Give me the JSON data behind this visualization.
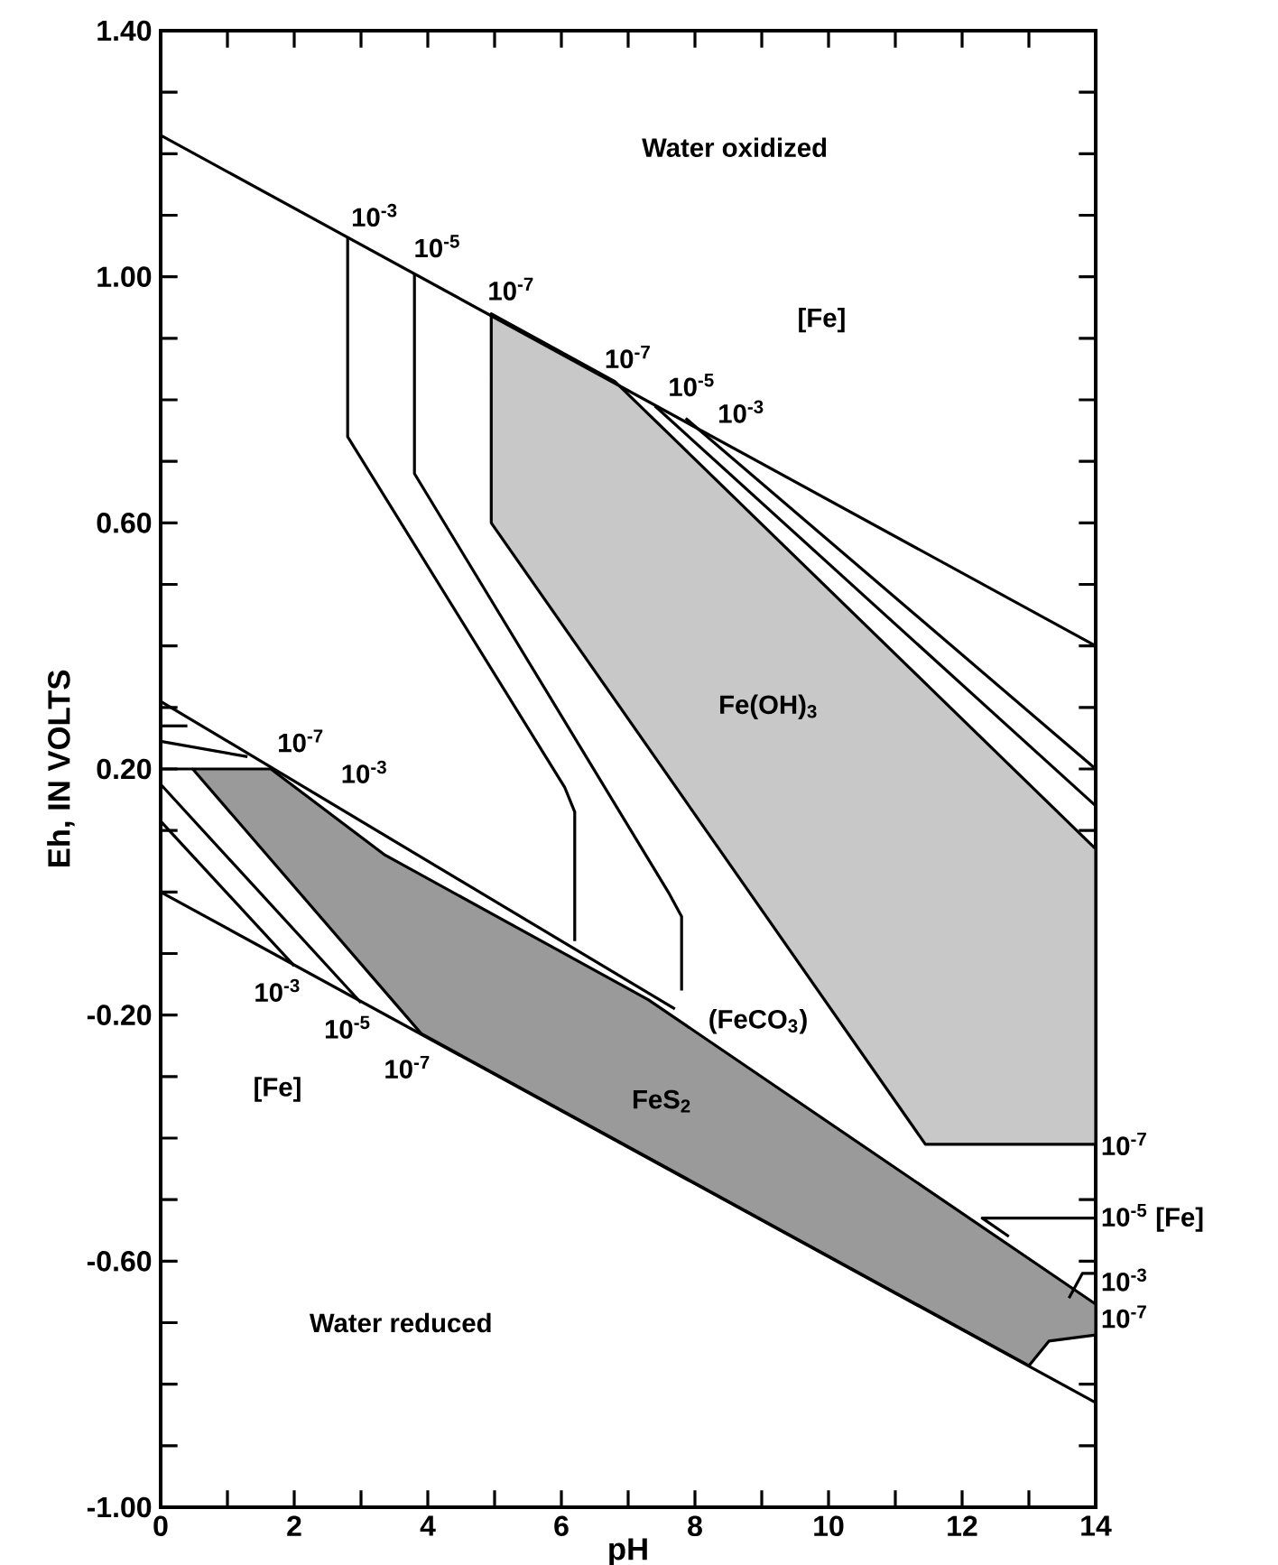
{
  "chart_data": {
    "type": "line",
    "xlabel": "pH",
    "ylabel": "Eh, IN VOLTS",
    "marker": "none",
    "xlim": [
      0,
      14
    ],
    "ylim": [
      -1.0,
      1.4
    ],
    "xticks": [
      0,
      {
        "value": 1,
        "label": null
      },
      2,
      {
        "value": 3,
        "label": null
      },
      4,
      {
        "value": 5,
        "label": null
      },
      6,
      {
        "value": 7,
        "label": null
      },
      8,
      {
        "value": 9,
        "label": null
      },
      10,
      {
        "value": 11,
        "label": null
      },
      12,
      {
        "value": 13,
        "label": null
      },
      14
    ],
    "yticks": [
      {
        "value": -1.0,
        "label": "-1.00"
      },
      {
        "value": -0.9,
        "label": null
      },
      {
        "value": -0.8,
        "label": null
      },
      {
        "value": -0.7,
        "label": null
      },
      {
        "value": -0.6,
        "label": "-0.60"
      },
      {
        "value": -0.5,
        "label": null
      },
      {
        "value": -0.4,
        "label": null
      },
      {
        "value": -0.3,
        "label": null
      },
      {
        "value": -0.2,
        "label": "-0.20"
      },
      {
        "value": -0.1,
        "label": null
      },
      {
        "value": 0.0,
        "label": null
      },
      {
        "value": 0.1,
        "label": null
      },
      {
        "value": 0.2,
        "label": "0.20"
      },
      {
        "value": 0.3,
        "label": null
      },
      {
        "value": 0.4,
        "label": null
      },
      {
        "value": 0.5,
        "label": null
      },
      {
        "value": 0.6,
        "label": "0.60"
      },
      {
        "value": 0.7,
        "label": null
      },
      {
        "value": 0.8,
        "label": null
      },
      {
        "value": 0.9,
        "label": null
      },
      {
        "value": 1.0,
        "label": "1.00"
      },
      {
        "value": 1.1,
        "label": null
      },
      {
        "value": 1.2,
        "label": null
      },
      {
        "value": 1.3,
        "label": null
      },
      {
        "value": 1.4,
        "label": "1.40"
      }
    ],
    "series": [
      {
        "type": "area",
        "color": "#c8c8c8",
        "x": [
          4.95,
          6.8,
          14,
          14,
          11.45,
          4.95
        ],
        "values": [
          0.94,
          0.83,
          0.07,
          -0.41,
          -0.41,
          0.6
        ]
      },
      {
        "type": "area",
        "color": "#9a9a9a",
        "x": [
          0.48,
          1.65,
          3.36,
          7.3,
          14,
          14,
          13.3,
          13.0,
          3.9
        ],
        "values": [
          0.2,
          0.2,
          0.06,
          -0.175,
          -0.67,
          -0.72,
          -0.73,
          -0.77,
          -0.23
        ]
      },
      {
        "color": "#000000",
        "x": [
          0,
          14
        ],
        "values": [
          1.23,
          0.4
        ]
      },
      {
        "color": "#000000",
        "x": [
          0,
          14
        ],
        "values": [
          0.0,
          -0.83
        ]
      },
      {
        "color": "#000000",
        "x": [
          2.8,
          2.8,
          6.05,
          6.2,
          6.2
        ],
        "values": [
          1.065,
          0.74,
          0.17,
          0.13,
          -0.08
        ]
      },
      {
        "color": "#000000",
        "x": [
          3.8,
          3.8,
          7.6,
          7.8,
          7.8
        ],
        "values": [
          1.005,
          0.68,
          0.0,
          -0.04,
          -0.16
        ]
      },
      {
        "color": "#000000",
        "x": [
          7.4,
          14
        ],
        "values": [
          0.79,
          0.14
        ]
      },
      {
        "color": "#000000",
        "x": [
          7.86,
          14
        ],
        "values": [
          0.77,
          0.2
        ]
      },
      {
        "color": "#000000",
        "x": [
          12.7,
          12.3,
          14
        ],
        "values": [
          -0.56,
          -0.53,
          -0.53
        ]
      },
      {
        "color": "#000000",
        "x": [
          13.6,
          13.8,
          14
        ],
        "values": [
          -0.66,
          -0.62,
          -0.62
        ]
      },
      {
        "color": "#000000",
        "x": [
          0,
          2.0
        ],
        "values": [
          0.115,
          -0.12
        ]
      },
      {
        "color": "#000000",
        "x": [
          0,
          3.0
        ],
        "values": [
          0.175,
          -0.18
        ]
      },
      {
        "color": "#000000",
        "x": [
          0,
          7.7
        ],
        "values": [
          0.31,
          -0.19
        ]
      },
      {
        "color": "#000000",
        "x": [
          0,
          0.4
        ],
        "values": [
          0.27,
          0.27
        ]
      },
      {
        "color": "#000000",
        "x": [
          0,
          1.3
        ],
        "values": [
          0.245,
          0.22
        ]
      },
      {
        "color": "#000000",
        "x": [
          0,
          0.48
        ],
        "values": [
          0.2,
          0.2
        ]
      }
    ],
    "annotations": [
      "Water oxidized",
      "[Fe]",
      "Fe(OH)$_{3}$",
      "(FeCO$_{3}$)",
      "FeS$_{2}$",
      "Water reduced",
      "[Fe]",
      "10$^{-3}$",
      "10$^{-5}$",
      "10$^{-7}$",
      "10$^{-7}$",
      "10$^{-5}$",
      "10$^{-3}$",
      "10$^{-7}$",
      "10$^{-3}$",
      "10$^{-3}$",
      "10$^{-5}$",
      "10$^{-7}$",
      "10$^{-7}$",
      "10$^{-5}$ [Fe]",
      "10$^{-3}$",
      "10$^{-7}$"
    ]
  }
}
